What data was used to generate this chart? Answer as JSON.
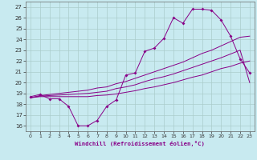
{
  "xlabel": "Windchill (Refroidissement éolien,°C)",
  "background_color": "#c8eaf0",
  "grid_color": "#aacccc",
  "line_color": "#880088",
  "ylim": [
    15.5,
    27.5
  ],
  "xlim": [
    -0.5,
    23.5
  ],
  "yticks": [
    16,
    17,
    18,
    19,
    20,
    21,
    22,
    23,
    24,
    25,
    26,
    27
  ],
  "xticks": [
    0,
    1,
    2,
    3,
    4,
    5,
    6,
    7,
    8,
    9,
    10,
    11,
    12,
    13,
    14,
    15,
    16,
    17,
    18,
    19,
    20,
    21,
    22,
    23
  ],
  "line1_x": [
    0,
    1,
    2,
    3,
    4,
    5,
    6,
    7,
    8,
    9,
    10,
    11,
    12,
    13,
    14,
    15,
    16,
    17,
    18,
    19,
    20,
    21,
    22,
    23
  ],
  "line1_y": [
    18.7,
    18.9,
    18.5,
    18.5,
    17.8,
    16.0,
    16.0,
    16.5,
    17.8,
    18.4,
    20.7,
    20.9,
    22.9,
    23.2,
    24.1,
    26.0,
    25.5,
    26.8,
    26.8,
    26.7,
    25.8,
    24.3,
    22.2,
    20.9
  ],
  "line2_x": [
    0,
    1,
    2,
    3,
    4,
    5,
    6,
    7,
    8,
    9,
    10,
    11,
    12,
    13,
    14,
    15,
    16,
    17,
    18,
    19,
    20,
    21,
    22,
    23
  ],
  "line2_y": [
    18.6,
    18.7,
    18.7,
    18.7,
    18.7,
    18.7,
    18.7,
    18.8,
    18.85,
    18.95,
    19.1,
    19.25,
    19.45,
    19.6,
    19.8,
    20.0,
    20.25,
    20.5,
    20.7,
    21.0,
    21.3,
    21.5,
    21.8,
    22.0
  ],
  "line3_x": [
    0,
    1,
    2,
    3,
    4,
    5,
    6,
    7,
    8,
    9,
    10,
    11,
    12,
    13,
    14,
    15,
    16,
    17,
    18,
    19,
    20,
    21,
    22,
    23
  ],
  "line3_y": [
    18.6,
    18.8,
    18.9,
    19.0,
    19.1,
    19.2,
    19.3,
    19.5,
    19.6,
    19.9,
    20.1,
    20.4,
    20.7,
    21.0,
    21.3,
    21.6,
    21.9,
    22.3,
    22.7,
    23.0,
    23.4,
    23.8,
    24.2,
    24.3
  ],
  "line4_x": [
    0,
    1,
    2,
    3,
    4,
    5,
    6,
    7,
    8,
    9,
    10,
    11,
    12,
    13,
    14,
    15,
    16,
    17,
    18,
    19,
    20,
    21,
    22,
    23
  ],
  "line4_y": [
    18.6,
    18.75,
    18.8,
    18.85,
    18.9,
    18.95,
    19.0,
    19.1,
    19.2,
    19.45,
    19.6,
    19.8,
    20.1,
    20.35,
    20.55,
    20.8,
    21.1,
    21.4,
    21.7,
    22.0,
    22.3,
    22.65,
    23.0,
    20.0
  ]
}
